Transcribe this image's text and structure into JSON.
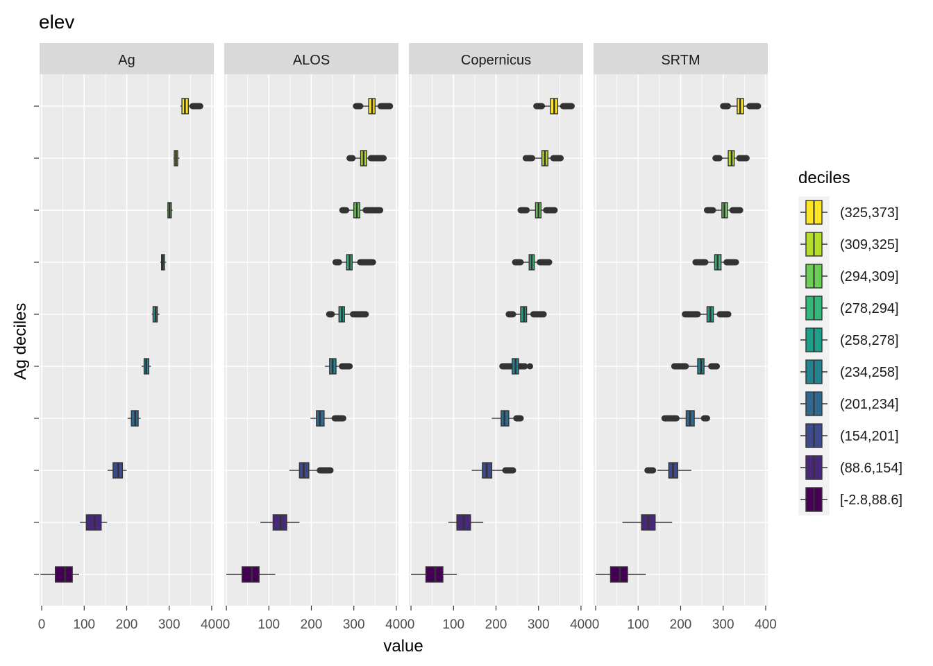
{
  "chart_data": {
    "type": "boxplot",
    "title": "elev",
    "xlabel": "value",
    "ylabel": "Ag deciles",
    "xlim": [
      -5,
      405
    ],
    "x_ticks": [
      0,
      100,
      200,
      300,
      400
    ],
    "x_tick_labels": [
      "0",
      "100",
      "200",
      "300",
      "400"
    ],
    "grid": true,
    "facets": [
      "Ag",
      "ALOS",
      "Copernicus",
      "SRTM"
    ],
    "legend": {
      "title": "deciles",
      "position": "right",
      "entries": [
        "(325,373]",
        "(309,325]",
        "(294,309]",
        "(278,294]",
        "(258,278]",
        "(234,258]",
        "(201,234]",
        "(154,201]",
        "(88.6,154]",
        "[-2.8,88.6]"
      ],
      "colors": [
        "#FDE725",
        "#B4DE2C",
        "#6DCD59",
        "#35B779",
        "#1F9E89",
        "#26828E",
        "#31688E",
        "#3E4A89",
        "#482878",
        "#440154"
      ]
    },
    "deciles_bottom_to_top": [
      "[-2.8,88.6]",
      "(88.6,154]",
      "(154,201]",
      "(201,234]",
      "(234,258]",
      "(258,278]",
      "(278,294]",
      "(294,309]",
      "(309,325]",
      "(325,373]"
    ],
    "series": [
      {
        "name": "Ag",
        "boxes": [
          {
            "q1": 32,
            "med": 55,
            "q3": 72,
            "wlo": -3,
            "whi": 88,
            "out": []
          },
          {
            "q1": 105,
            "med": 125,
            "q3": 140,
            "wlo": 90,
            "whi": 154,
            "out": []
          },
          {
            "q1": 168,
            "med": 180,
            "q3": 190,
            "wlo": 155,
            "whi": 200,
            "out": []
          },
          {
            "q1": 211,
            "med": 220,
            "q3": 227,
            "wlo": 202,
            "whi": 233,
            "out": []
          },
          {
            "q1": 241,
            "med": 246,
            "q3": 252,
            "wlo": 235,
            "whi": 257,
            "out": []
          },
          {
            "q1": 262,
            "med": 268,
            "q3": 272,
            "wlo": 259,
            "whi": 277,
            "out": []
          },
          {
            "q1": 282,
            "med": 285,
            "q3": 289,
            "wlo": 279,
            "whi": 293,
            "out": []
          },
          {
            "q1": 297,
            "med": 301,
            "q3": 305,
            "wlo": 295,
            "whi": 308,
            "out": []
          },
          {
            "q1": 312,
            "med": 316,
            "q3": 320,
            "wlo": 310,
            "whi": 324,
            "out": []
          },
          {
            "q1": 330,
            "med": 337,
            "q3": 345,
            "wlo": 326,
            "whi": 352,
            "out": [
              355,
              373
            ]
          }
        ]
      },
      {
        "name": "ALOS",
        "boxes": [
          {
            "q1": 37,
            "med": 60,
            "q3": 77,
            "wlo": 0,
            "whi": 115,
            "out": []
          },
          {
            "q1": 110,
            "med": 127,
            "q3": 142,
            "wlo": 80,
            "whi": 172,
            "out": []
          },
          {
            "q1": 172,
            "med": 182,
            "q3": 194,
            "wlo": 148,
            "whi": 215,
            "out": [
              220,
              245
            ]
          },
          {
            "q1": 212,
            "med": 220,
            "q3": 230,
            "wlo": 198,
            "whi": 250,
            "out": [
              255,
              275
            ]
          },
          {
            "q1": 243,
            "med": 250,
            "q3": 258,
            "wlo": 232,
            "whi": 268,
            "out": [
              272,
              290
            ]
          },
          {
            "q1": 265,
            "med": 272,
            "q3": 278,
            "wlo": 250,
            "whi": 295,
            "out": [
              242,
              248,
              298,
              328
            ]
          },
          {
            "q1": 283,
            "med": 290,
            "q3": 296,
            "wlo": 268,
            "whi": 312,
            "out": [
              257,
              265,
              315,
              345
            ]
          },
          {
            "q1": 300,
            "med": 307,
            "q3": 314,
            "wlo": 285,
            "whi": 325,
            "out": [
              273,
              282,
              328,
              362
            ]
          },
          {
            "q1": 316,
            "med": 323,
            "q3": 330,
            "wlo": 300,
            "whi": 338,
            "out": [
              290,
              297,
              340,
              370
            ]
          },
          {
            "q1": 335,
            "med": 343,
            "q3": 350,
            "wlo": 318,
            "whi": 360,
            "out": [
              305,
              315,
              363,
              385
            ]
          }
        ]
      },
      {
        "name": "Copernicus",
        "boxes": [
          {
            "q1": 35,
            "med": 57,
            "q3": 75,
            "wlo": 0,
            "whi": 108,
            "out": []
          },
          {
            "q1": 108,
            "med": 124,
            "q3": 140,
            "wlo": 88,
            "whi": 170,
            "out": []
          },
          {
            "q1": 168,
            "med": 178,
            "q3": 190,
            "wlo": 143,
            "whi": 218,
            "out": [
              222,
              240
            ]
          },
          {
            "q1": 212,
            "med": 220,
            "q3": 230,
            "wlo": 190,
            "whi": 245,
            "out": [
              248,
              258
            ]
          },
          {
            "q1": 238,
            "med": 246,
            "q3": 253,
            "wlo": 222,
            "whi": 265,
            "out": [
              215,
              268,
              280
            ]
          },
          {
            "q1": 258,
            "med": 266,
            "q3": 272,
            "wlo": 245,
            "whi": 285,
            "out": [
              230,
              240,
              288,
              312
            ]
          },
          {
            "q1": 278,
            "med": 284,
            "q3": 290,
            "wlo": 262,
            "whi": 300,
            "out": [
              245,
              258,
              303,
              325
            ]
          },
          {
            "q1": 293,
            "med": 300,
            "q3": 306,
            "wlo": 275,
            "whi": 315,
            "out": [
              258,
              272,
              318,
              338
            ]
          },
          {
            "q1": 308,
            "med": 315,
            "q3": 322,
            "wlo": 290,
            "whi": 332,
            "out": [
              270,
              285,
              335,
              352
            ]
          },
          {
            "q1": 328,
            "med": 337,
            "q3": 345,
            "wlo": 312,
            "whi": 355,
            "out": [
              295,
              308,
              358,
              378
            ]
          }
        ]
      },
      {
        "name": "SRTM",
        "boxes": [
          {
            "q1": 35,
            "med": 57,
            "q3": 75,
            "wlo": 0,
            "whi": 118,
            "out": []
          },
          {
            "q1": 108,
            "med": 124,
            "q3": 140,
            "wlo": 63,
            "whi": 180,
            "out": []
          },
          {
            "q1": 172,
            "med": 182,
            "q3": 193,
            "wlo": 145,
            "whi": 225,
            "out": [
              122,
              135
            ]
          },
          {
            "q1": 213,
            "med": 222,
            "q3": 232,
            "wlo": 195,
            "whi": 250,
            "out": [
              162,
              190,
              255,
              262
            ]
          },
          {
            "q1": 240,
            "med": 248,
            "q3": 255,
            "wlo": 218,
            "whi": 270,
            "out": [
              185,
              212,
              272,
              285
            ]
          },
          {
            "q1": 262,
            "med": 270,
            "q3": 277,
            "wlo": 245,
            "whi": 290,
            "out": [
              210,
              240,
              292,
              312
            ]
          },
          {
            "q1": 280,
            "med": 287,
            "q3": 295,
            "wlo": 262,
            "whi": 305,
            "out": [
              235,
              258,
              308,
              330
            ]
          },
          {
            "q1": 297,
            "med": 303,
            "q3": 310,
            "wlo": 280,
            "whi": 320,
            "out": [
              262,
              276,
              322,
              340
            ]
          },
          {
            "q1": 312,
            "med": 320,
            "q3": 326,
            "wlo": 295,
            "whi": 335,
            "out": [
              282,
              291,
              338,
              355
            ]
          },
          {
            "q1": 333,
            "med": 340,
            "q3": 348,
            "wlo": 315,
            "whi": 358,
            "out": [
              300,
              311,
              362,
              382
            ]
          }
        ]
      }
    ]
  }
}
